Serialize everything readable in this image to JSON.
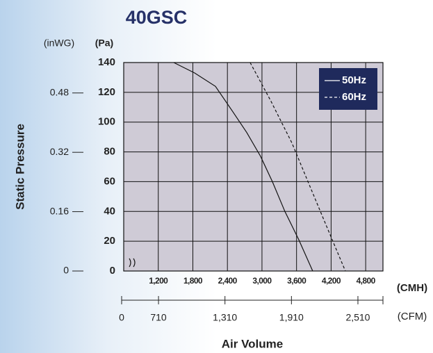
{
  "chart_data": {
    "type": "line",
    "title": "40GSC",
    "y_unit_label": "(Pa)",
    "y2_unit_label": "(inWG)",
    "y_label": "Static Pressure",
    "x_unit_label": "(CMH)",
    "x2_unit_label": "(CFM)",
    "x_label": "Air Volume",
    "xlim": [
      600,
      5100
    ],
    "xticks": [
      {
        "value": 1200,
        "label": "1,200"
      },
      {
        "value": 1800,
        "label": "1,800"
      },
      {
        "value": 2400,
        "label": "2,400"
      },
      {
        "value": 3000,
        "label": "3,000"
      },
      {
        "value": 3600,
        "label": "3,600"
      },
      {
        "value": 4200,
        "label": "4,200"
      },
      {
        "value": 4800,
        "label": "4,800"
      }
    ],
    "x2lim": [
      396,
      2736
    ],
    "x2ticks": [
      {
        "value": 710,
        "label": "710"
      },
      {
        "value": 1310,
        "label": "1,310"
      },
      {
        "value": 1910,
        "label": "1,910"
      },
      {
        "value": 2510,
        "label": "2,510"
      }
    ],
    "x2_origin_label": "0",
    "ylim": [
      0,
      140
    ],
    "yticks": [
      0,
      20,
      40,
      60,
      80,
      100,
      120,
      140
    ],
    "y2lim": [
      0,
      0.562
    ],
    "y2ticks": [
      0,
      0.16,
      0.32,
      0.48
    ],
    "grid": true,
    "legend": "upper right",
    "series": [
      {
        "name": "50Hz",
        "color": "#111111",
        "dash": false,
        "x": [
          1469,
          1831,
          2192,
          2493,
          2735,
          2976,
          3181,
          3398,
          3639,
          3880
        ],
        "values": [
          140,
          133,
          124,
          107,
          93,
          77,
          60,
          40,
          21,
          0
        ]
      },
      {
        "name": "60Hz",
        "color": "#111111",
        "dash": true,
        "x": [
          2795,
          3157,
          3519,
          3820,
          4122,
          4447
        ],
        "values": [
          140,
          114,
          86,
          58,
          30,
          0
        ]
      }
    ]
  }
}
